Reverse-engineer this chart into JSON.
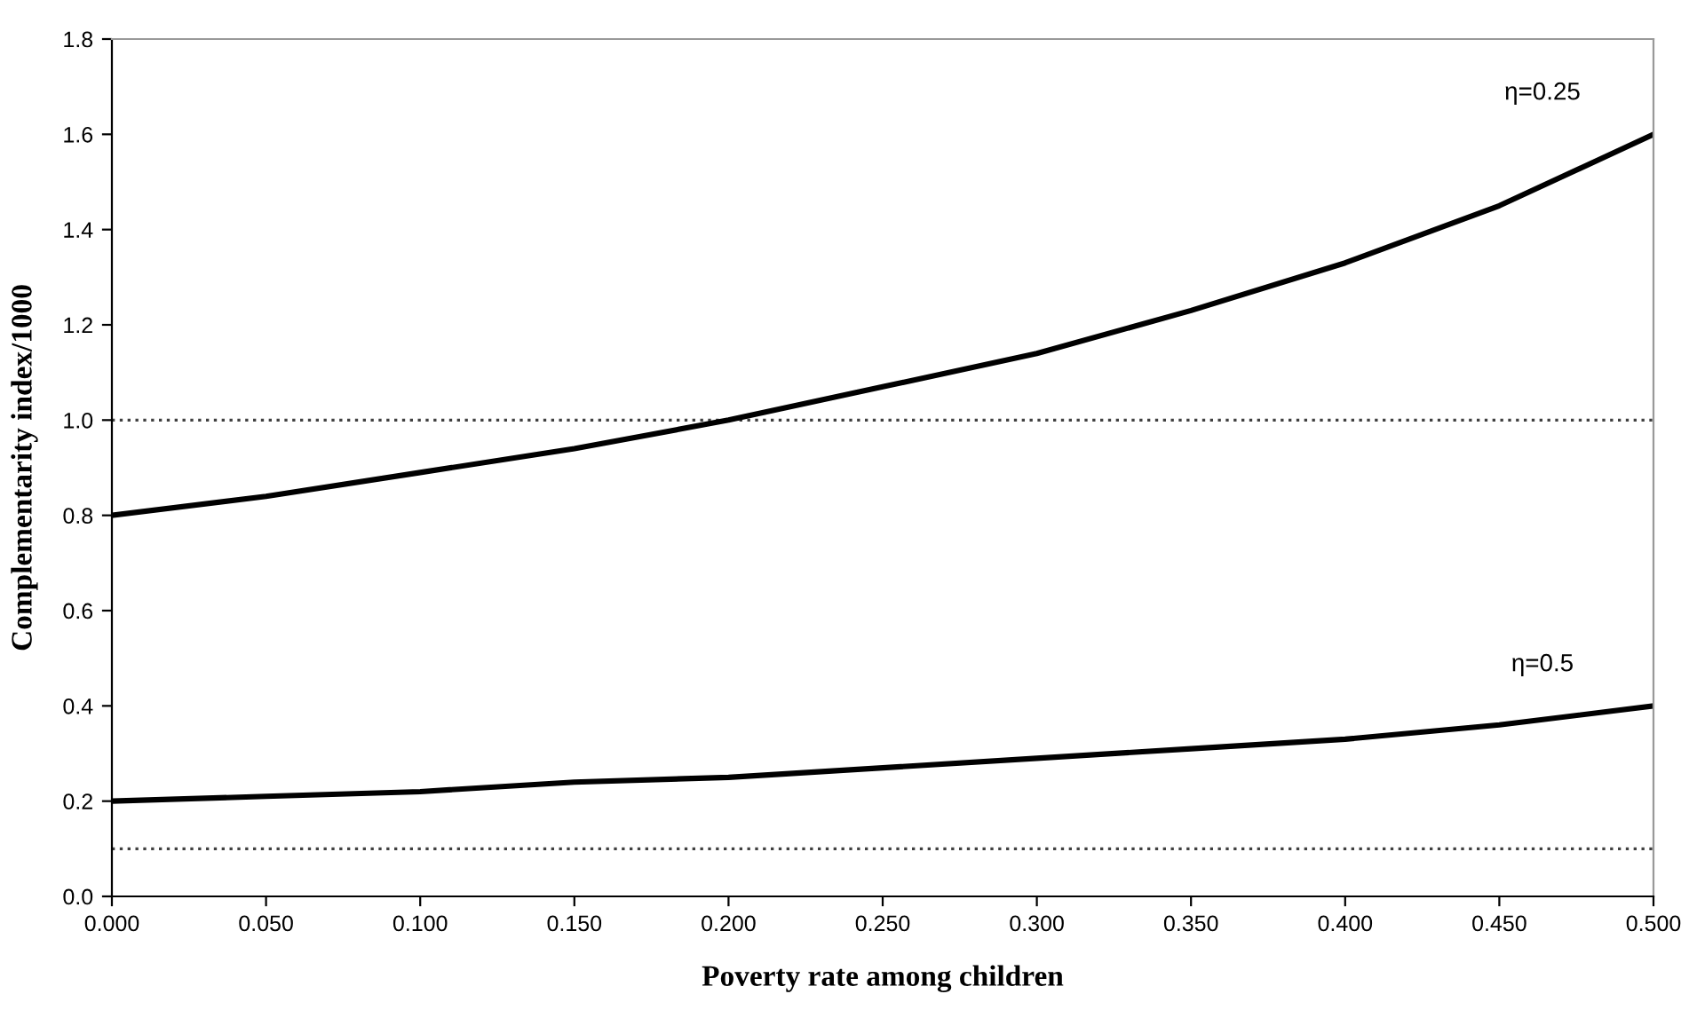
{
  "chart_data": {
    "type": "line",
    "xlabel": "Poverty rate among children",
    "ylabel": "Complementarity index/1000",
    "x": [
      0,
      0.05,
      0.1,
      0.15,
      0.2,
      0.25,
      0.3,
      0.35,
      0.4,
      0.45,
      0.5
    ],
    "series": [
      {
        "name": "η=0.25",
        "color": "#000000",
        "values": [
          0.8,
          0.84,
          0.89,
          0.94,
          1.0,
          1.07,
          1.14,
          1.23,
          1.33,
          1.45,
          1.6
        ]
      },
      {
        "name": "η=0.5",
        "color": "#000000",
        "values": [
          0.2,
          0.21,
          0.22,
          0.24,
          0.25,
          0.27,
          0.29,
          0.31,
          0.33,
          0.36,
          0.4
        ]
      }
    ],
    "ref_lines": [
      {
        "axis": "y",
        "value": 1.0,
        "color": "#404040",
        "line_style": "dotted"
      },
      {
        "axis": "y",
        "value": 0.1,
        "color": "#404040",
        "line_style": "dotted"
      }
    ],
    "xlim": [
      0,
      0.5
    ],
    "ylim": [
      0,
      1.8
    ],
    "xticks": [
      {
        "value": 0,
        "label": "0.000"
      },
      {
        "value": 0.05,
        "label": "0.050"
      },
      {
        "value": 0.1,
        "label": "0.100"
      },
      {
        "value": 0.15,
        "label": "0.150"
      },
      {
        "value": 0.2,
        "label": "0.200"
      },
      {
        "value": 0.25,
        "label": "0.250"
      },
      {
        "value": 0.3,
        "label": "0.300"
      },
      {
        "value": 0.35,
        "label": "0.350"
      },
      {
        "value": 0.4,
        "label": "0.400"
      },
      {
        "value": 0.45,
        "label": "0.450"
      },
      {
        "value": 0.5,
        "label": "0.500"
      }
    ],
    "yticks": [
      {
        "value": 0,
        "label": "0.0"
      },
      {
        "value": 0.2,
        "label": "0.2"
      },
      {
        "value": 0.4,
        "label": "0.4"
      },
      {
        "value": 0.6,
        "label": "0.6"
      },
      {
        "value": 0.8,
        "label": "0.8"
      },
      {
        "value": 1.0,
        "label": "1.0"
      },
      {
        "value": 1.2,
        "label": "1.2"
      },
      {
        "value": 1.4,
        "label": "1.4"
      },
      {
        "value": 1.6,
        "label": "1.6"
      },
      {
        "value": 1.8,
        "label": "1.8"
      }
    ],
    "grid": false,
    "legend": false,
    "marker": "none",
    "line_style": "solid"
  }
}
